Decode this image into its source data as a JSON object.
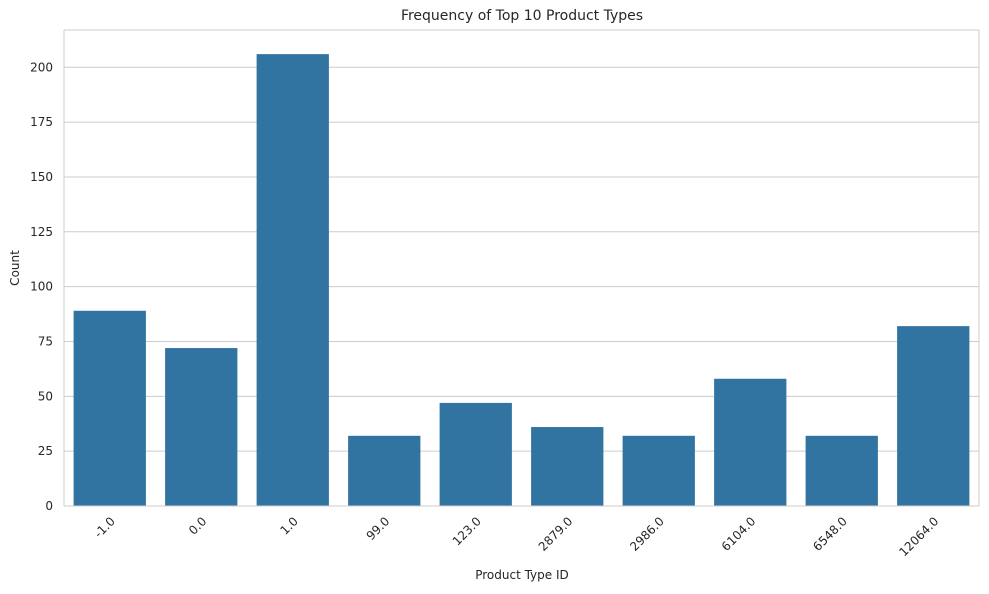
{
  "chart_data": {
    "type": "bar",
    "title": "Frequency of Top 10 Product Types",
    "xlabel": "Product Type ID",
    "ylabel": "Count",
    "categories": [
      "-1.0",
      "0.0",
      "1.0",
      "99.0",
      "123.0",
      "2879.0",
      "2986.0",
      "6104.0",
      "6548.0",
      "12064.0"
    ],
    "values": [
      89,
      72,
      206,
      32,
      47,
      36,
      32,
      58,
      32,
      82
    ],
    "ylim": [
      0,
      217
    ],
    "yticks": [
      "0",
      "25",
      "50",
      "75",
      "100",
      "125",
      "150",
      "175",
      "200"
    ],
    "grid": true,
    "bar_color": "#3274a1",
    "grid_color": "#cccccc",
    "axis_color": "#cccccc"
  }
}
